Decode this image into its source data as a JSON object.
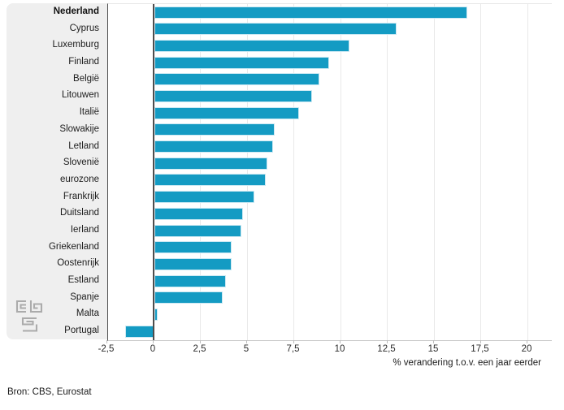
{
  "chart_data": {
    "type": "bar",
    "orientation": "horizontal",
    "title": "",
    "categories": [
      "Nederland",
      "Cyprus",
      "Luxemburg",
      "Finland",
      "België",
      "Litouwen",
      "Italië",
      "Slowakije",
      "Letland",
      "Slovenië",
      "eurozone",
      "Frankrijk",
      "Duitsland",
      "Ierland",
      "Griekenland",
      "Oostenrijk",
      "Estland",
      "Spanje",
      "Malta",
      "Portugal"
    ],
    "values": [
      16.7,
      12.9,
      10.4,
      9.3,
      8.8,
      8.4,
      7.7,
      6.4,
      6.3,
      6.0,
      5.9,
      5.3,
      4.7,
      4.6,
      4.1,
      4.1,
      3.8,
      3.6,
      0.1,
      -1.5
    ],
    "highlight_category": "Nederland",
    "xlabel": "% verandering t.o.v. een jaar eerder",
    "ylabel": "",
    "xlim": [
      -2.5,
      21.2
    ],
    "xticks": [
      -2.5,
      0,
      2.5,
      5,
      7.5,
      10,
      12.5,
      15,
      17.5,
      20
    ],
    "xtick_labels": [
      "-2,5",
      "0",
      "2,5",
      "5",
      "7,5",
      "10",
      "12,5",
      "15",
      "17,5",
      "20"
    ],
    "grid": "vertical",
    "legend": "none",
    "bar_color": "#149bc3",
    "axis_color": "#4d4d4d"
  },
  "source": {
    "label": "Bron: CBS, Eurostat"
  },
  "logo": {
    "name": "cbs-logo",
    "color": "#ababab"
  },
  "colors": {
    "panel_background": "#efefef",
    "plot_background": "#ffffff",
    "gridline": "#e9e9e9",
    "text": "#1c1c1c"
  }
}
